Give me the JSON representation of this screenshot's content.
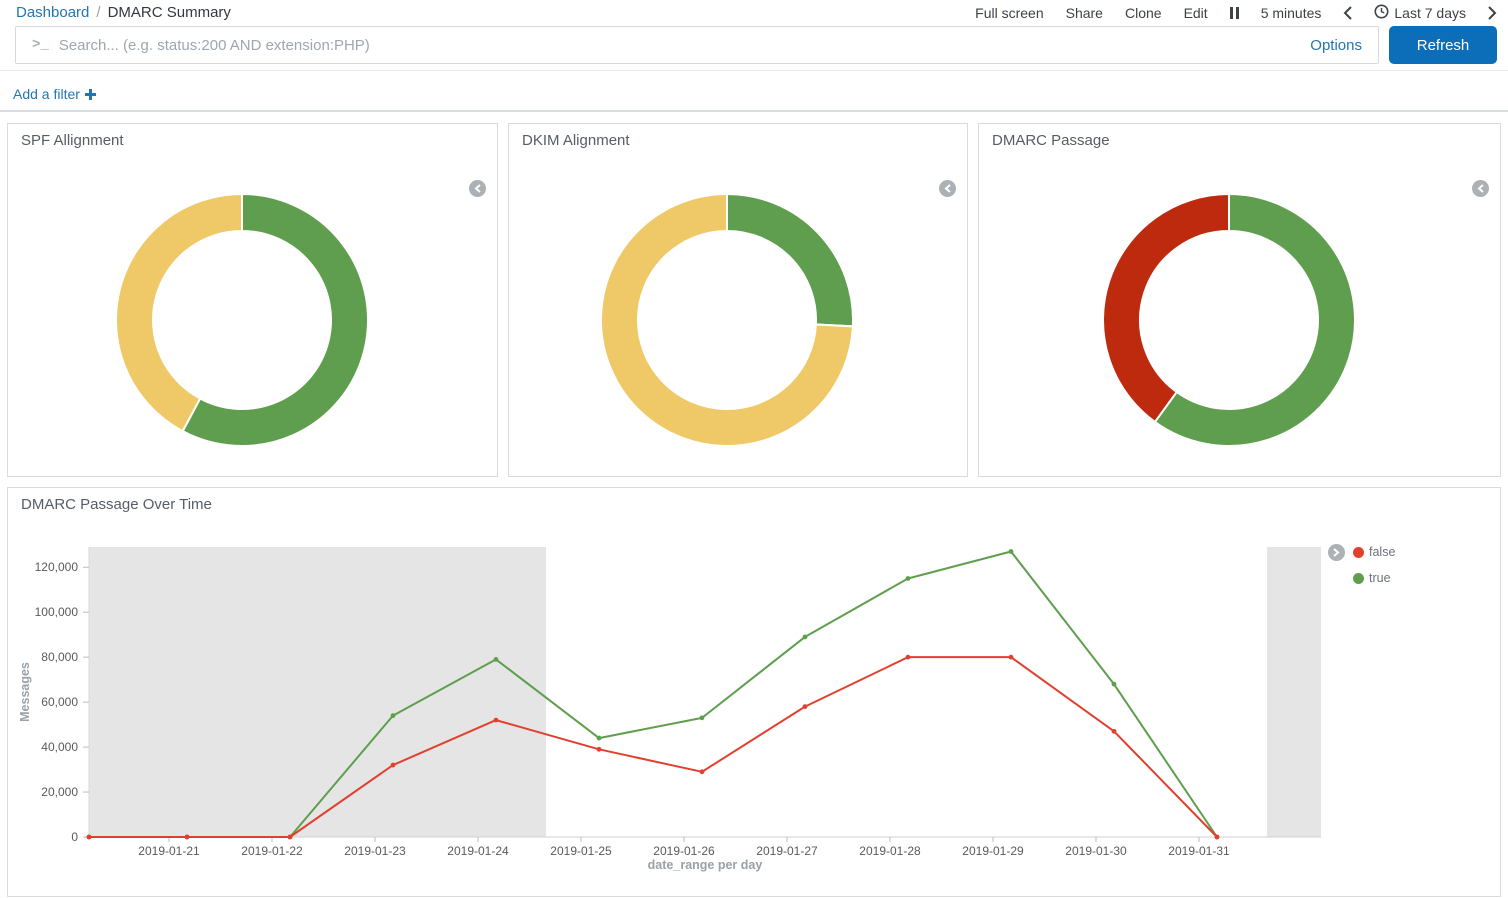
{
  "colors": {
    "link_blue": "#2275B4",
    "button_blue": "#0C6DB8",
    "pie_green": "#5F9E4E",
    "pie_yellow": "#EFC968",
    "pie_red": "#BE2A0D",
    "line_red": "#E2402F",
    "line_green": "#5F9E4E",
    "endzone_gray": "#E5E5E5"
  },
  "header": {
    "breadcrumb_root": "Dashboard",
    "breadcrumb_separator": "/",
    "breadcrumb_current": "DMARC Summary",
    "nav": [
      "Full screen",
      "Share",
      "Clone",
      "Edit"
    ],
    "refresh_interval": "5 minutes",
    "time_range": "Last 7 days"
  },
  "query_bar": {
    "placeholder": "Search... (e.g. status:200 AND extension:PHP)",
    "value": "",
    "options_label": "Options",
    "refresh_label": "Refresh"
  },
  "filter_bar": {
    "add_filter_label": "Add a filter"
  },
  "panels": {
    "spf": {
      "title": "SPF Allignment"
    },
    "dkim": {
      "title": "DKIM Alignment"
    },
    "dmarc": {
      "title": "DMARC Passage"
    },
    "timeline": {
      "title": "DMARC Passage Over Time"
    }
  },
  "legend": {
    "items": [
      {
        "label": "false",
        "color": "#E2402F"
      },
      {
        "label": "true",
        "color": "#5F9E4E"
      }
    ]
  },
  "chart_data": [
    {
      "type": "pie",
      "title": "SPF Allignment",
      "donut": true,
      "slices": [
        {
          "pct": 57.8,
          "color": "#5F9E4E"
        },
        {
          "pct": 42.2,
          "color": "#EFC968"
        }
      ]
    },
    {
      "type": "pie",
      "title": "DKIM Alignment",
      "donut": true,
      "slices": [
        {
          "pct": 25.8,
          "color": "#5F9E4E"
        },
        {
          "pct": 74.2,
          "color": "#EFC968"
        }
      ]
    },
    {
      "type": "pie",
      "title": "DMARC Passage",
      "donut": true,
      "slices": [
        {
          "pct": 60.0,
          "color": "#5F9E4E"
        },
        {
          "pct": 40.0,
          "color": "#BE2A0D"
        }
      ]
    },
    {
      "type": "line",
      "title": "DMARC Passage Over Time",
      "xlabel": "date_range per day",
      "ylabel": "Messages",
      "x": [
        "2019-01-21",
        "2019-01-22",
        "2019-01-23",
        "2019-01-24",
        "2019-01-25",
        "2019-01-26",
        "2019-01-27",
        "2019-01-28",
        "2019-01-29",
        "2019-01-30",
        "2019-01-31"
      ],
      "series": [
        {
          "name": "false",
          "color": "#E2402F",
          "values": [
            0,
            0,
            32000,
            52000,
            39000,
            29000,
            58000,
            80000,
            80000,
            47000,
            0
          ]
        },
        {
          "name": "true",
          "color": "#5F9E4E",
          "values": [
            0,
            0,
            54000,
            79000,
            44000,
            53000,
            89000,
            115000,
            127000,
            68000,
            0
          ]
        }
      ],
      "ylim": [
        0,
        129000
      ],
      "yticks": [
        0,
        20000,
        40000,
        60000,
        80000,
        100000,
        120000
      ],
      "grid": false,
      "legend_position": "right",
      "endzones": {
        "left_until_day_index": 3.66,
        "right_from_day_index": 10.66
      }
    }
  ]
}
